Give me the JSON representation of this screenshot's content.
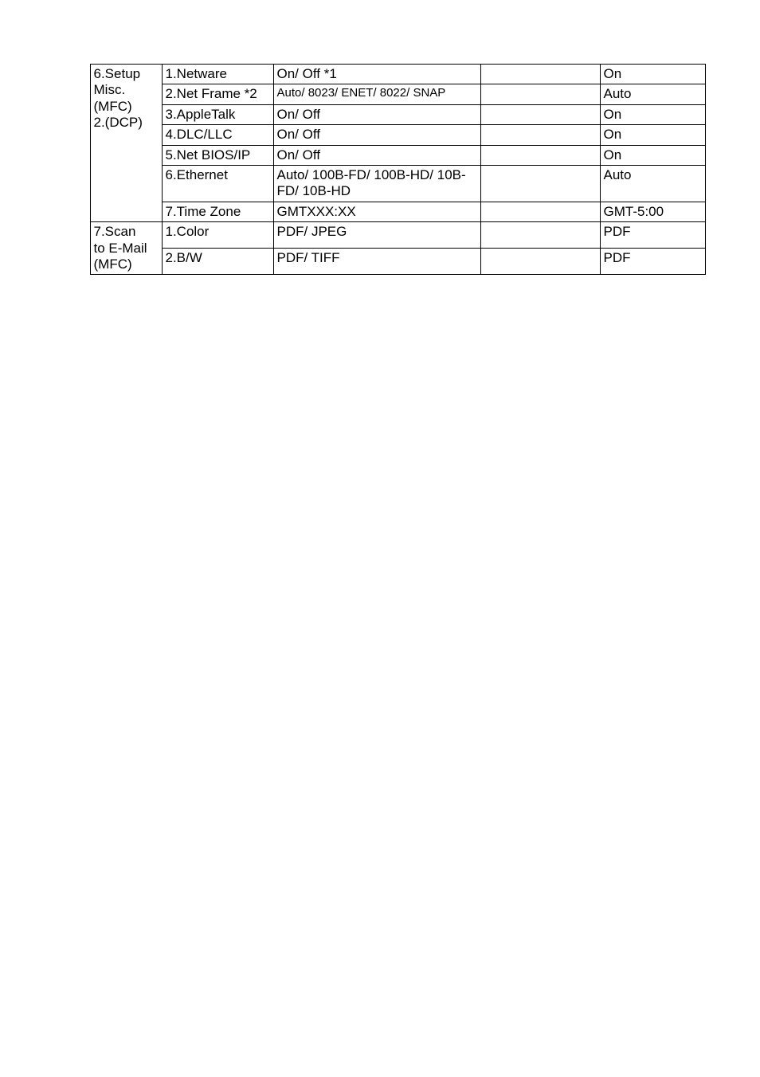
{
  "colors": {
    "border": "#000000",
    "background": "#ffffff",
    "text": "#000000"
  },
  "typography": {
    "base_font": "Arial",
    "base_size_pt": 13,
    "small_size_pt": 11
  },
  "rows": [
    {
      "group": "6.Setup Misc. (MFC) 2.(DCP)",
      "item": "1.Netware",
      "options": "On/ Off *1",
      "extra": "",
      "default": "On"
    },
    {
      "item": "2.Net Frame *2",
      "options": "Auto/ 8023/ ENET/ 8022/ SNAP",
      "extra": "",
      "default": "Auto",
      "options_small": true
    },
    {
      "item": "3.AppleTalk",
      "options": "On/ Off",
      "extra": "",
      "default": "On"
    },
    {
      "item": "4.DLC/LLC",
      "options": "On/ Off",
      "extra": "",
      "default": "On"
    },
    {
      "item": "5.Net BIOS/IP",
      "options": "On/ Off",
      "extra": "",
      "default": "On"
    },
    {
      "item": "6.Ethernet",
      "options": "Auto/ 100B-FD/ 100B-HD/ 10B-FD/ 10B-HD",
      "extra": "",
      "default": "Auto"
    },
    {
      "item": "7.Time Zone",
      "options": "GMTXXX:XX",
      "extra": "",
      "default": "GMT-5:00"
    },
    {
      "group": "7.Scan to E-Mail (MFC)",
      "item": "1.Color",
      "options": "PDF/ JPEG",
      "extra": "",
      "default": "PDF"
    },
    {
      "item": "2.B/W",
      "options": "PDF/ TIFF",
      "extra": "",
      "default": "PDF"
    }
  ],
  "group1_lines": [
    "6.Setup",
    "Misc.",
    "(MFC)",
    "2.(DCP)"
  ],
  "group2_lines": [
    "7.Scan",
    "to E-Mail",
    "(MFC)"
  ]
}
